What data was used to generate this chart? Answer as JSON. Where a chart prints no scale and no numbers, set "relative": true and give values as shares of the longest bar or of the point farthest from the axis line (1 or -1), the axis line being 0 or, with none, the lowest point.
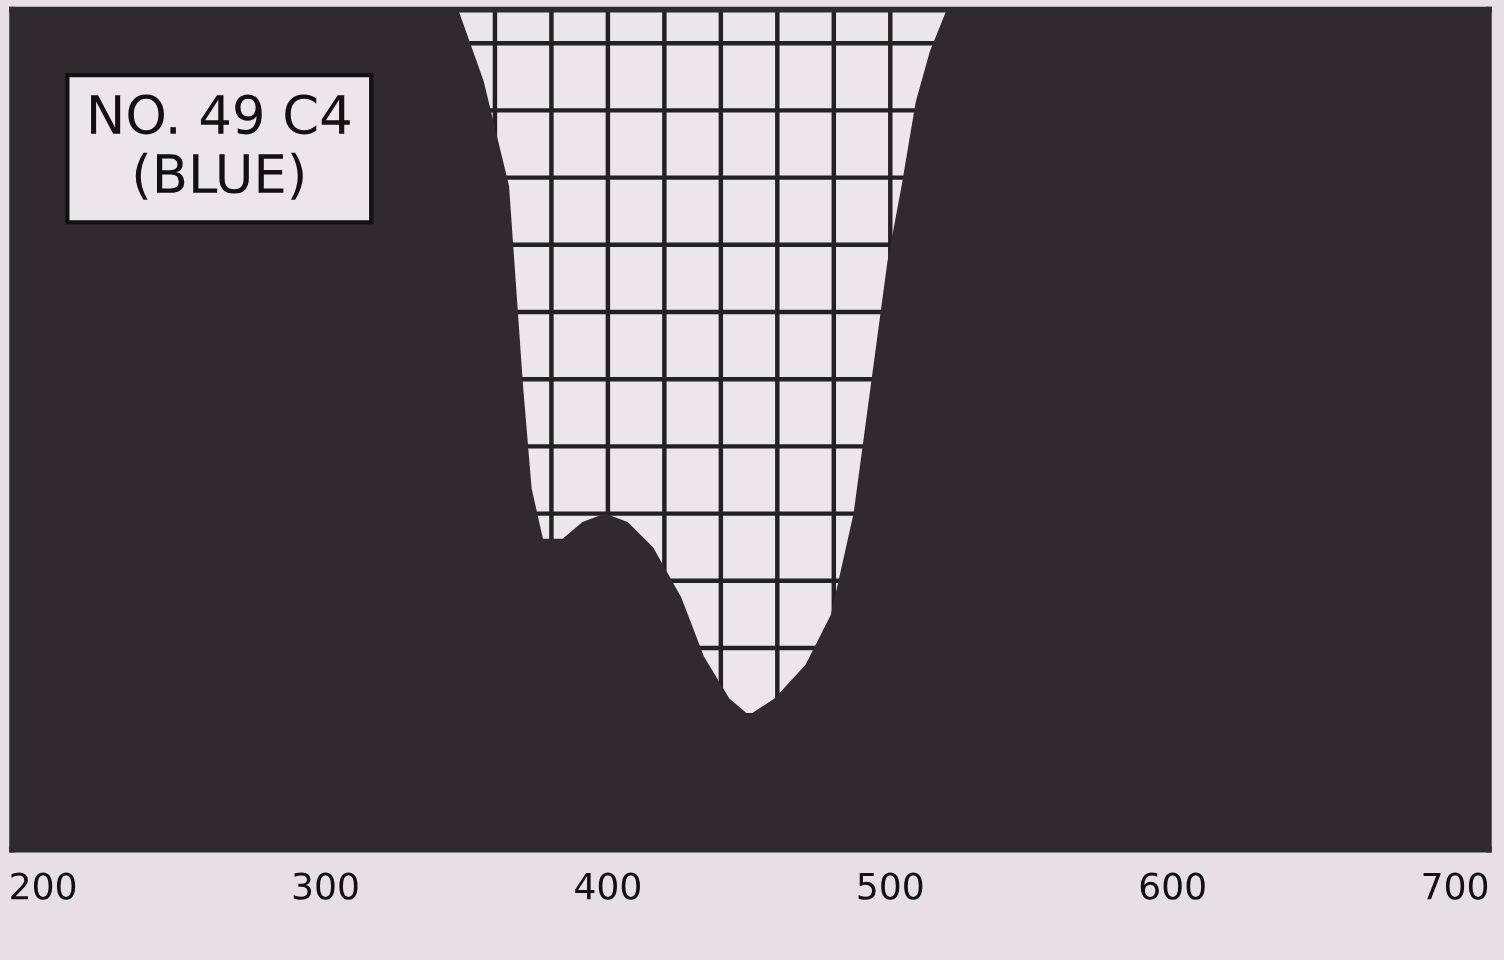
{
  "chart_data": {
    "type": "area",
    "relative": true,
    "color": "#2e2a2e",
    "x": [
      189,
      347,
      356,
      365,
      370,
      373,
      377,
      384,
      391,
      399,
      407,
      416,
      426,
      434,
      443,
      450,
      459,
      470,
      479,
      487,
      493,
      499,
      504,
      509,
      514,
      520,
      712
    ],
    "values": [
      1,
      1,
      0.915,
      0.79,
      0.55,
      0.43,
      0.37,
      0.37,
      0.39,
      0.4,
      0.39,
      0.36,
      0.3,
      0.23,
      0.18,
      0.16,
      0.18,
      0.22,
      0.28,
      0.4,
      0.55,
      0.7,
      0.79,
      0.89,
      0.95,
      1,
      1
    ],
    "xlim": [
      189,
      712
    ],
    "xticks": [
      200,
      300,
      {
        "value": 360,
        "label": null
      },
      {
        "value": 380,
        "label": null
      },
      400,
      {
        "value": 420,
        "label": null
      },
      {
        "value": 440,
        "label": null
      },
      {
        "value": 460,
        "label": null
      },
      {
        "value": 480,
        "label": null
      },
      500,
      600,
      700
    ],
    "grid": true,
    "annotations": [
      "NO. 49 C4\n(BLUE)"
    ]
  }
}
